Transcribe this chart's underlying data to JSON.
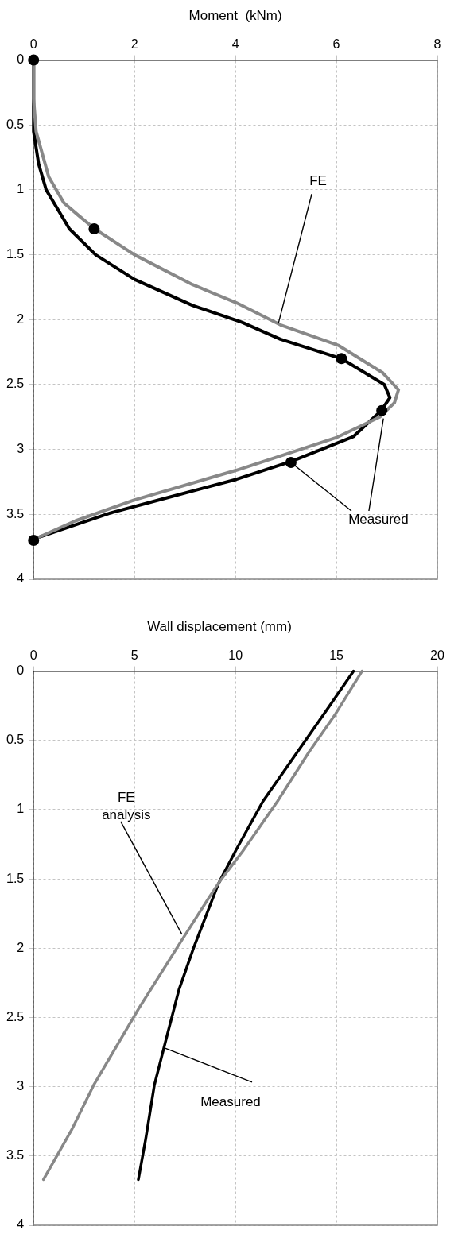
{
  "chart_data": [
    {
      "type": "line",
      "xlabel": "Moment  (kNm)",
      "xlim": [
        0,
        8
      ],
      "xticks": [
        0,
        2,
        4,
        6,
        8
      ],
      "ylim": [
        4,
        0
      ],
      "yticks": [
        0,
        0.5,
        1,
        1.5,
        2,
        2.5,
        3,
        3.5,
        4
      ],
      "grid": true,
      "legend": false,
      "series": [
        {
          "color": "#888888",
          "marker": "none",
          "x": [
            0,
            0,
            0.05,
            0.3,
            0.6,
            0.9,
            1.21,
            2,
            3.15,
            4.02,
            4.89,
            6.05,
            6.92,
            7.23,
            7.15,
            6.86,
            5.99,
            4.89,
            4.02,
            1.99,
            0.83,
            0.08
          ],
          "values": [
            0,
            0.3,
            0.55,
            0.9,
            1.1,
            1.2,
            1.3,
            1.5,
            1.73,
            1.87,
            2.04,
            2.2,
            2.41,
            2.54,
            2.64,
            2.75,
            2.91,
            3.05,
            3.16,
            3.39,
            3.55,
            3.68
          ]
        },
        {
          "color": "#000000",
          "marker": "none",
          "x": [
            0,
            0,
            0.1,
            0.25,
            0.71,
            1.23,
            2,
            3.15,
            4.13,
            4.89,
            6.1,
            6.95,
            7.06,
            6.89,
            6.34,
            5.12,
            4.02,
            2.57,
            1.52,
            0
          ],
          "values": [
            0,
            0.55,
            0.8,
            1.0,
            1.3,
            1.5,
            1.69,
            1.89,
            2.02,
            2.15,
            2.3,
            2.5,
            2.6,
            2.7,
            2.9,
            3.09,
            3.23,
            3.38,
            3.49,
            3.69
          ]
        },
        {
          "type": "scatter",
          "color": "#000000",
          "marker": "circle",
          "x": [
            0,
            1.2,
            6.1,
            6.9,
            5.1,
            0
          ],
          "values": [
            0,
            1.3,
            2.3,
            2.7,
            3.1,
            3.7
          ]
        }
      ],
      "annotations": [
        {
          "text": "FE",
          "x": 4.85,
          "y": 2.03
        },
        {
          "text": "Measured",
          "x": 5.1,
          "y": 3.1
        }
      ]
    },
    {
      "type": "line",
      "title": "Wall displacement (mm)",
      "xlim": [
        0,
        20
      ],
      "xticks": [
        0,
        5,
        10,
        15,
        20
      ],
      "ylim": [
        4,
        0
      ],
      "yticks": [
        0,
        0.5,
        1,
        1.5,
        2,
        2.5,
        3,
        3.5,
        4
      ],
      "grid": true,
      "legend": false,
      "series": [
        {
          "color": "#888888",
          "marker": "none",
          "x": [
            16.27,
            14.95,
            13.66,
            12.08,
            10.36,
            9.21,
            8.71,
            7.35,
            5.19,
            2.97,
            1.89,
            0.49
          ],
          "values": [
            0,
            0.31,
            0.58,
            0.94,
            1.3,
            1.52,
            1.63,
            1.94,
            2.44,
            2.99,
            3.31,
            3.67
          ]
        },
        {
          "color": "#000000",
          "marker": "none",
          "x": [
            15.85,
            14.52,
            12.94,
            11.36,
            10.07,
            9.35,
            9.14,
            7.92,
            7.2,
            6.56,
            5.98,
            5.55,
            5.19
          ],
          "values": [
            0,
            0.28,
            0.61,
            0.94,
            1.28,
            1.48,
            1.54,
            2.0,
            2.3,
            2.66,
            2.99,
            3.38,
            3.67
          ]
        }
      ],
      "annotations": [
        {
          "text": "FE\nanalysis",
          "x": 7.35,
          "y": 1.9
        },
        {
          "text": "Measured",
          "x": 6.49,
          "y": 2.72
        }
      ]
    }
  ]
}
